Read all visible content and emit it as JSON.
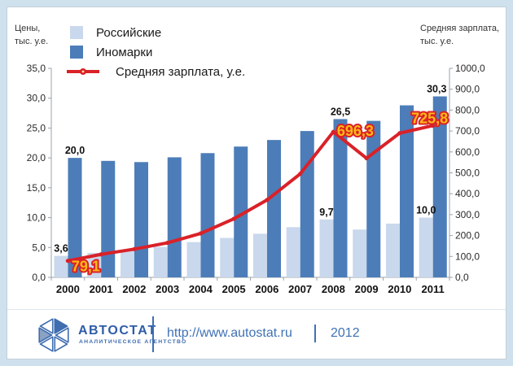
{
  "left_axis_title": {
    "line1": "Цены,",
    "line2": "тыс. у.е."
  },
  "right_axis_title": {
    "line1": "Средняя зарплата,",
    "line2": "тыс. у.е."
  },
  "legend": {
    "items": [
      {
        "label": "Российские",
        "color": "#c9d8ec"
      },
      {
        "label": "Иномарки",
        "color": "#4c7db8"
      },
      {
        "label": "Средняя зарплата, у.е.",
        "color": "#da2128"
      }
    ]
  },
  "chart_data": {
    "type": "bar+line",
    "categories": [
      "2000",
      "2001",
      "2002",
      "2003",
      "2004",
      "2005",
      "2006",
      "2007",
      "2008",
      "2009",
      "2010",
      "2011"
    ],
    "series": [
      {
        "name": "Российские",
        "type": "bar",
        "axis": "left",
        "color": "#c9d8ec",
        "values": [
          3.6,
          4.1,
          4.4,
          5.1,
          5.9,
          6.6,
          7.3,
          8.4,
          9.7,
          8.0,
          9.0,
          10.0
        ]
      },
      {
        "name": "Иномарки",
        "type": "bar",
        "axis": "left",
        "color": "#4c7db8",
        "values": [
          20.0,
          19.5,
          19.3,
          20.1,
          20.8,
          21.9,
          23.0,
          24.5,
          26.5,
          26.2,
          28.8,
          30.3
        ]
      },
      {
        "name": "Средняя зарплата, у.е.",
        "type": "line",
        "axis": "right",
        "color": "#da2128",
        "values": [
          79.1,
          110,
          135,
          165,
          210,
          280,
          370,
          495,
          696.3,
          570,
          690,
          725.8
        ]
      }
    ],
    "left_axis": {
      "min": 0,
      "max": 35,
      "step": 5
    },
    "right_axis": {
      "min": 0,
      "max": 1000,
      "step": 100
    },
    "grid": false,
    "legend_position": "top-left",
    "bar_labels": [
      {
        "series": 0,
        "index": 0,
        "text": "3,6"
      },
      {
        "series": 1,
        "index": 0,
        "text": "20,0"
      },
      {
        "series": 0,
        "index": 8,
        "text": "9,7"
      },
      {
        "series": 1,
        "index": 8,
        "text": "26,5"
      },
      {
        "series": 0,
        "index": 11,
        "text": "10,0"
      },
      {
        "series": 1,
        "index": 11,
        "text": "30,3"
      }
    ],
    "line_labels": [
      {
        "index": 0,
        "text": "79,1"
      },
      {
        "index": 8,
        "text": "696,3"
      },
      {
        "index": 11,
        "text": "725,8"
      }
    ],
    "line_label_color": "#fdb913",
    "line_label_outline": "#da2128"
  },
  "footer": {
    "brand": "АВТОСТАТ",
    "brand_subtitle": "АНАЛИТИЧЕСКОЕ АГЕНТСТВО",
    "url": "http://www.autostat.ru",
    "year": "2012"
  }
}
